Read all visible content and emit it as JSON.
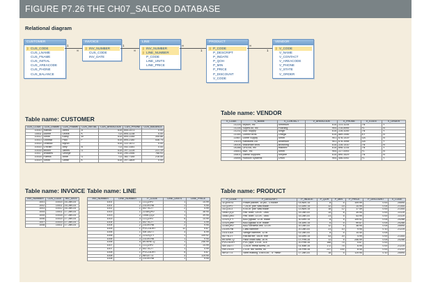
{
  "figure_title": "FIGURE P7.26  THE CH07_SALECO DATABASE",
  "diagram": {
    "title": "Relational diagram",
    "key_glyph": "⚷",
    "entities": [
      {
        "name": "CUSTOMER",
        "pk": [
          "CUS_CODE"
        ],
        "attrs": [
          "CUS_LNAME",
          "CUS_FNAME",
          "CUS_INITIAL",
          "CUS_AREACODE",
          "CUS_PHONE",
          "CUS_BALANCE"
        ]
      },
      {
        "name": "INVOICE",
        "pk": [
          "INV_NUMBER"
        ],
        "attrs": [
          "CUS_CODE",
          "INV_DATE"
        ]
      },
      {
        "name": "LINE",
        "pk": [
          "INV_NUMBER",
          "LINE_NUMBER"
        ],
        "attrs": [
          "P_CODE",
          "LINE_UNITS",
          "LINE_PRICE"
        ]
      },
      {
        "name": "PRODUCT",
        "pk": [
          "P_CODE"
        ],
        "attrs": [
          "P_DESCRIPT",
          "P_INDATE",
          "P_QOH",
          "P_MIN",
          "P_PRICE",
          "P_DISCOUNT",
          "V_CODE"
        ]
      },
      {
        "name": "VENDOR",
        "pk": [
          "V_CODE"
        ],
        "attrs": [
          "V_NAME",
          "V_CONTACT",
          "V_AREACODE",
          "V_PHONE",
          "V_STATE",
          "V_ORDER"
        ]
      }
    ],
    "relations": [
      {
        "one": "1",
        "many": "∞"
      },
      {
        "one": "1",
        "many": "∞"
      },
      {
        "one": "∞",
        "many": "1"
      },
      {
        "one": "∞",
        "many": "1"
      }
    ]
  },
  "tables": {
    "customer": {
      "title": "Table name: CUSTOMER",
      "columns": [
        "CUS_CODE",
        "CUS_LNAME",
        "CUS_FNAME",
        "CUS_INITIAL",
        "CUS_AREACODE",
        "CUS_PHONE",
        "CUS_BALANCE"
      ],
      "rows": [
        [
          "10010",
          "Ramas",
          "Alfred",
          "A",
          "615",
          "844-2573",
          "0.00"
        ],
        [
          "10011",
          "Dunne",
          "Leona",
          "K",
          "713",
          "894-1238",
          "0.00"
        ],
        [
          "10012",
          "Smith",
          "Kathy",
          "W",
          "615",
          "894-2285",
          "345.86"
        ],
        [
          "10013",
          "Olowski",
          "Paul",
          "F",
          "615",
          "894-2180",
          "536.75"
        ],
        [
          "10014",
          "Orlando",
          "Myron",
          "",
          "615",
          "222-1672",
          "0.00"
        ],
        [
          "10015",
          "O'Brian",
          "Amy",
          "B",
          "713",
          "442-3381",
          "0.00"
        ],
        [
          "10016",
          "Brown",
          "James",
          "G",
          "615",
          "297-1228",
          "221.19"
        ],
        [
          "10017",
          "Williams",
          "George",
          "",
          "615",
          "290-2556",
          "768.93"
        ],
        [
          "10018",
          "Farriss",
          "Anne",
          "G",
          "713",
          "382-7185",
          "216.55"
        ],
        [
          "10019",
          "Smith",
          "Olette",
          "K",
          "615",
          "297-3809",
          "0.00"
        ]
      ]
    },
    "vendor": {
      "title": "Table name: VENDOR",
      "columns": [
        "V_CODE",
        "V_NAME",
        "V_CONTACT",
        "V_AREACODE",
        "V_PHONE",
        "V_STATE",
        "V_ORDER"
      ],
      "rows": [
        [
          "21225",
          "Bryson, Inc.",
          "Smithson",
          "615",
          "223-3234",
          "TN",
          "Y"
        ],
        [
          "21226",
          "SuperLoo, Inc.",
          "Flushing",
          "904",
          "215-8995",
          "FL",
          "N"
        ],
        [
          "21231",
          "D&E Supply",
          "Singh",
          "615",
          "228-3245",
          "TN",
          "Y"
        ],
        [
          "21344",
          "Gomez Bros.",
          "Ortega",
          "615",
          "889-2546",
          "KY",
          "N"
        ],
        [
          "22567",
          "Dome Supply",
          "Smith",
          "901",
          "678-1419",
          "GA",
          "N"
        ],
        [
          "23119",
          "Randsets Ltd.",
          "Anderson",
          "901",
          "678-3998",
          "GA",
          "Y"
        ],
        [
          "24004",
          "Brackman Bros.",
          "Browning",
          "615",
          "228-1410",
          "TN",
          "N"
        ],
        [
          "24288",
          "ORDVA, Inc.",
          "Hakford",
          "615",
          "898-1234",
          "TN",
          "Y"
        ],
        [
          "25443",
          "B&K, Inc.",
          "Smith",
          "904",
          "227-0093",
          "FL",
          "N"
        ],
        [
          "25501",
          "Damal Supplies",
          "Smythe",
          "615",
          "890-3529",
          "TN",
          "N"
        ],
        [
          "25595",
          "Rubicon Systems",
          "Orton",
          "904",
          "456-0092",
          "FL",
          "Y"
        ]
      ]
    },
    "invoice": {
      "title": "Table name: INVOICE",
      "columns": [
        "INV_NUMBER",
        "CUS_CODE",
        "INV_DATE"
      ],
      "rows": [
        [
          "1001",
          "10014",
          "16-Jan-16"
        ],
        [
          "1002",
          "10011",
          "16-Jan-16"
        ],
        [
          "1003",
          "10012",
          "16-Jan-16"
        ],
        [
          "1004",
          "10011",
          "17-Jan-16"
        ],
        [
          "1005",
          "10018",
          "17-Jan-16"
        ],
        [
          "1006",
          "10014",
          "17-Jan-16"
        ],
        [
          "1007",
          "10015",
          "17-Jan-16"
        ],
        [
          "1008",
          "10011",
          "17-Jan-16"
        ]
      ]
    },
    "line": {
      "title": "Table name: LINE",
      "columns": [
        "INV_NUMBER",
        "LINE_NUMBER",
        "P_CODE",
        "LINE_UNITS",
        "LINE_PRICE"
      ],
      "rows": [
        [
          "1001",
          "1",
          "13-Q2/P2",
          "1",
          "14.99"
        ],
        [
          "1001",
          "2",
          "23109-HB",
          "1",
          "9.95"
        ],
        [
          "1002",
          "1",
          "54778-2T",
          "2",
          "4.99"
        ],
        [
          "1003",
          "1",
          "2238/QPD",
          "1",
          "38.95"
        ],
        [
          "1003",
          "2",
          "1546-QQ2",
          "1",
          "39.95"
        ],
        [
          "1003",
          "3",
          "13-Q2/P2",
          "5",
          "14.99"
        ],
        [
          "1004",
          "1",
          "54778-2T",
          "3",
          "4.99"
        ],
        [
          "1004",
          "2",
          "23109-HB",
          "2",
          "9.95"
        ],
        [
          "1005",
          "1",
          "PVC23DRT",
          "12",
          "5.87"
        ],
        [
          "1006",
          "1",
          "SM-18277",
          "3",
          "6.99"
        ],
        [
          "1006",
          "2",
          "2232/QTY",
          "1",
          "109.92"
        ],
        [
          "1006",
          "3",
          "23109-HB",
          "1",
          "9.95"
        ],
        [
          "1006",
          "4",
          "89-WRE-Q",
          "1",
          "256.99"
        ],
        [
          "1007",
          "1",
          "13-Q2/P2",
          "2",
          "14.99"
        ],
        [
          "1007",
          "2",
          "54778-2T",
          "1",
          "4.99"
        ],
        [
          "1008",
          "1",
          "PVC23DRT",
          "5",
          "5.87"
        ],
        [
          "1008",
          "2",
          "WR3/TT3",
          "3",
          "119.95"
        ],
        [
          "1008",
          "3",
          "23109-HB",
          "1",
          "9.95"
        ]
      ]
    },
    "product": {
      "title": "Table name: PRODUCT",
      "columns": [
        "P_CODE",
        "P_DESCRIPT",
        "P_INDATE",
        "P_QOH",
        "P_MIN",
        "P_PRICE",
        "P_DISCOUNT",
        "V_CODE"
      ],
      "rows": [
        [
          "11QER/31",
          "Power painter, 15 psi., 3-nozzle",
          "03-Nov-15",
          "8",
          "5",
          "109.99",
          "0.00",
          "25595"
        ],
        [
          "13-Q2/P2",
          "7.25-in. pwr. saw blade",
          "13-Dec-15",
          "32",
          "15",
          "14.99",
          "0.05",
          "21344"
        ],
        [
          "14-Q1/L3",
          "9.00-in. pwr. saw blade",
          "13-Nov-15",
          "18",
          "12",
          "17.49",
          "0.00",
          "21344"
        ],
        [
          "1546-QQ2",
          "Hrd. cloth, 1/4-in., 2x50",
          "15-Jan-16",
          "15",
          "8",
          "39.95",
          "0.00",
          "23119"
        ],
        [
          "1558-QW1",
          "Hrd. cloth, 1/2-in., 3x50",
          "15-Jan-16",
          "23",
          "5",
          "43.99",
          "0.00",
          "23119"
        ],
        [
          "2232/QTY",
          "B&D jigsaw, 12-in. blade",
          "30-Dec-15",
          "8",
          "5",
          "109.92",
          "0.05",
          "24288"
        ],
        [
          "2232/QWE",
          "B&D jigsaw, 8-in. blade",
          "24-Dec-15",
          "6",
          "5",
          "99.87",
          "0.05",
          "24288"
        ],
        [
          "2238/QPD",
          "B&D cordless drill, 1/2-in.",
          "20-Jan-16",
          "12",
          "5",
          "38.95",
          "0.05",
          "25595"
        ],
        [
          "23109-HB",
          "Claw hammer",
          "20-Jan-16",
          "23",
          "10",
          "9.95",
          "0.10",
          "21225"
        ],
        [
          "23114-AA",
          "Sledge hammer, 12 lb.",
          "02-Jan-16",
          "8",
          "5",
          "14.40",
          "0.05",
          ""
        ],
        [
          "54778-2T",
          "Rat-tail file, 1/8-in. fine",
          "15-Dec-15",
          "43",
          "20",
          "4.99",
          "0.00",
          "21344"
        ],
        [
          "89-WRE-Q",
          "Hicut chain saw, 16 in.",
          "07-Feb-16",
          "11",
          "5",
          "256.99",
          "0.05",
          "24288"
        ],
        [
          "PVC23DRT",
          "PVC pipe, 3.5-in., 8-ft",
          "20-Feb-16",
          "188",
          "75",
          "5.87",
          "0.00",
          ""
        ],
        [
          "SM-18277",
          "1.25-in. metal screw, 25",
          "01-Mar-16",
          "172",
          "75",
          "6.99",
          "0.00",
          "21225"
        ],
        [
          "SW-23116",
          "2.5-in. wd. screw, 50",
          "24-Feb-16",
          "237",
          "100",
          "8.45",
          "0.00",
          "21231"
        ],
        [
          "WR3/TT3",
          "Steel matting, 4'x8'x1/6\", .5\" mesh",
          "17-Jan-16",
          "18",
          "5",
          "119.95",
          "0.10",
          "25595"
        ]
      ]
    }
  }
}
